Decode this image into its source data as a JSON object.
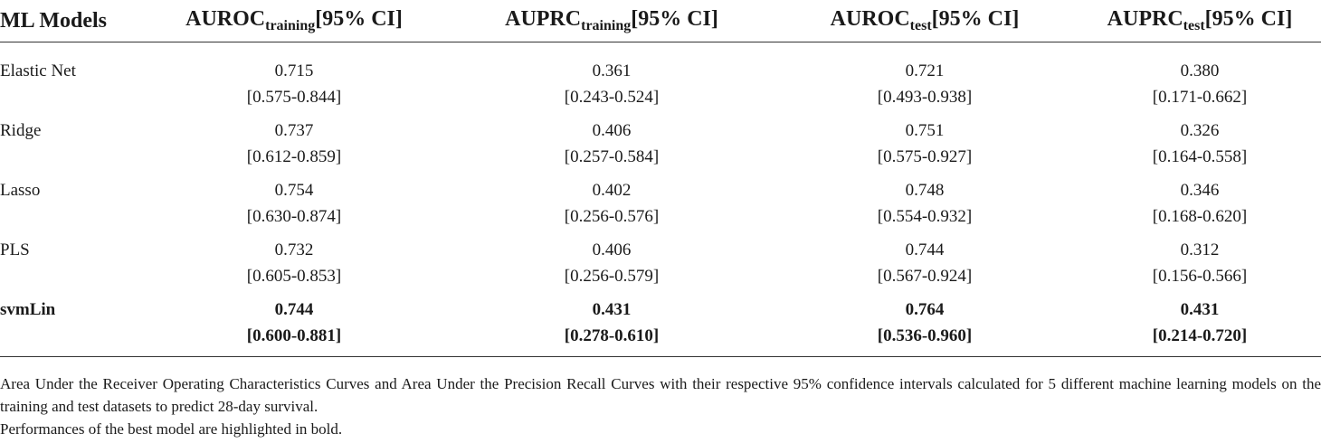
{
  "header": {
    "model": "ML Models",
    "auroc_training": {
      "main": "AUROC",
      "sub": "training",
      "tail": "[95% CI]"
    },
    "auprc_training": {
      "main": "AUPRC",
      "sub": "training",
      "tail": "[95% CI]"
    },
    "auroc_test": {
      "main": "AUROC",
      "sub": "test",
      "tail": "[95% CI]"
    },
    "auprc_test": {
      "main": "AUPRC",
      "sub": "test",
      "tail": "[95% CI]"
    }
  },
  "rows": [
    {
      "model": "Elastic Net",
      "auroc_training": {
        "value": "0.715",
        "ci": "[0.575-0.844]"
      },
      "auprc_training": {
        "value": "0.361",
        "ci": "[0.243-0.524]"
      },
      "auroc_test": {
        "value": "0.721",
        "ci": "[0.493-0.938]"
      },
      "auprc_test": {
        "value": "0.380",
        "ci": "[0.171-0.662]"
      }
    },
    {
      "model": "Ridge",
      "auroc_training": {
        "value": "0.737",
        "ci": "[0.612-0.859]"
      },
      "auprc_training": {
        "value": "0.406",
        "ci": "[0.257-0.584]"
      },
      "auroc_test": {
        "value": "0.751",
        "ci": "[0.575-0.927]"
      },
      "auprc_test": {
        "value": "0.326",
        "ci": "[0.164-0.558]"
      }
    },
    {
      "model": "Lasso",
      "auroc_training": {
        "value": "0.754",
        "ci": "[0.630-0.874]"
      },
      "auprc_training": {
        "value": "0.402",
        "ci": "[0.256-0.576]"
      },
      "auroc_test": {
        "value": "0.748",
        "ci": "[0.554-0.932]"
      },
      "auprc_test": {
        "value": "0.346",
        "ci": "[0.168-0.620]"
      }
    },
    {
      "model": "PLS",
      "auroc_training": {
        "value": "0.732",
        "ci": "[0.605-0.853]"
      },
      "auprc_training": {
        "value": "0.406",
        "ci": "[0.256-0.579]"
      },
      "auroc_test": {
        "value": "0.744",
        "ci": "[0.567-0.924]"
      },
      "auprc_test": {
        "value": "0.312",
        "ci": "[0.156-0.566]"
      }
    },
    {
      "model": "svmLin",
      "auroc_training": {
        "value": "0.744",
        "ci": "[0.600-0.881]"
      },
      "auprc_training": {
        "value": "0.431",
        "ci": "[0.278-0.610]"
      },
      "auroc_test": {
        "value": "0.764",
        "ci": "[0.536-0.960]"
      },
      "auprc_test": {
        "value": "0.431",
        "ci": "[0.214-0.720]"
      }
    }
  ],
  "footnotes": [
    "Area Under the Receiver Operating Characteristics Curves and Area Under the Precision Recall Curves with their respective 95% confidence intervals calculated for 5 different machine learning models on the training and test datasets to predict 28-day survival.",
    "Performances of the best model are highlighted in bold."
  ]
}
